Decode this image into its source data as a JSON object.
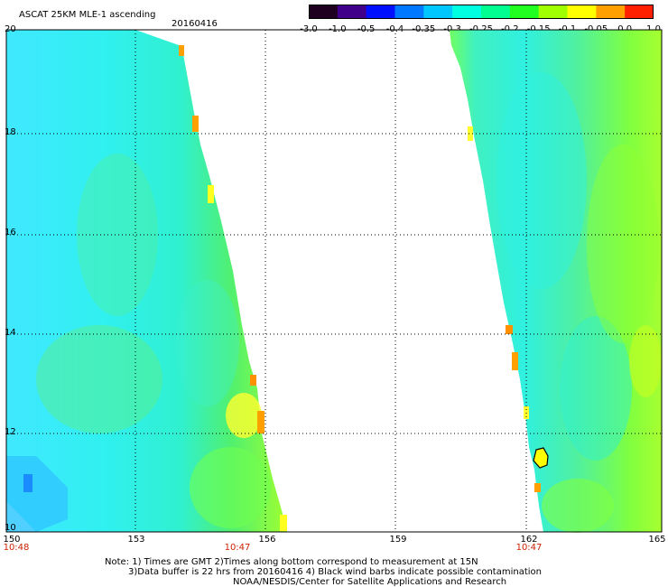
{
  "header": {
    "title": "ASCAT 25KM MLE-1 ascending",
    "date": "20160416"
  },
  "colorbar": {
    "ticks": [
      "-3.0",
      "-1.0",
      "-0.5",
      "-0.4",
      "-0.35",
      "-0.3",
      "-0.25",
      "-0.2",
      "-0.15",
      "-0.1",
      "-0.05",
      "0.0",
      "1.0"
    ],
    "colors": [
      "#200020",
      "#40008a",
      "#0010ff",
      "#0078ff",
      "#00c8ff",
      "#00ffe0",
      "#00ff90",
      "#20ff20",
      "#a0ff00",
      "#ffff00",
      "#ffa000",
      "#ff2000"
    ]
  },
  "axes": {
    "lat_labels": [
      "20",
      "18",
      "16",
      "14",
      "12",
      "10"
    ],
    "lon_labels": [
      "150",
      "153",
      "156",
      "159",
      "162",
      "165"
    ],
    "time_labels": [
      "10:48",
      "10:47",
      "10:47"
    ]
  },
  "notes": {
    "line1": "Note: 1) Times are GMT 2)Times along bottom correspond to measurement at 15N",
    "line2": "3)Data buffer is 22 hrs from 20160416 4) Black wind barbs indicate possible contamination",
    "line3": "NOAA/NESDIS/Center for Satellite Applications and Research"
  }
}
